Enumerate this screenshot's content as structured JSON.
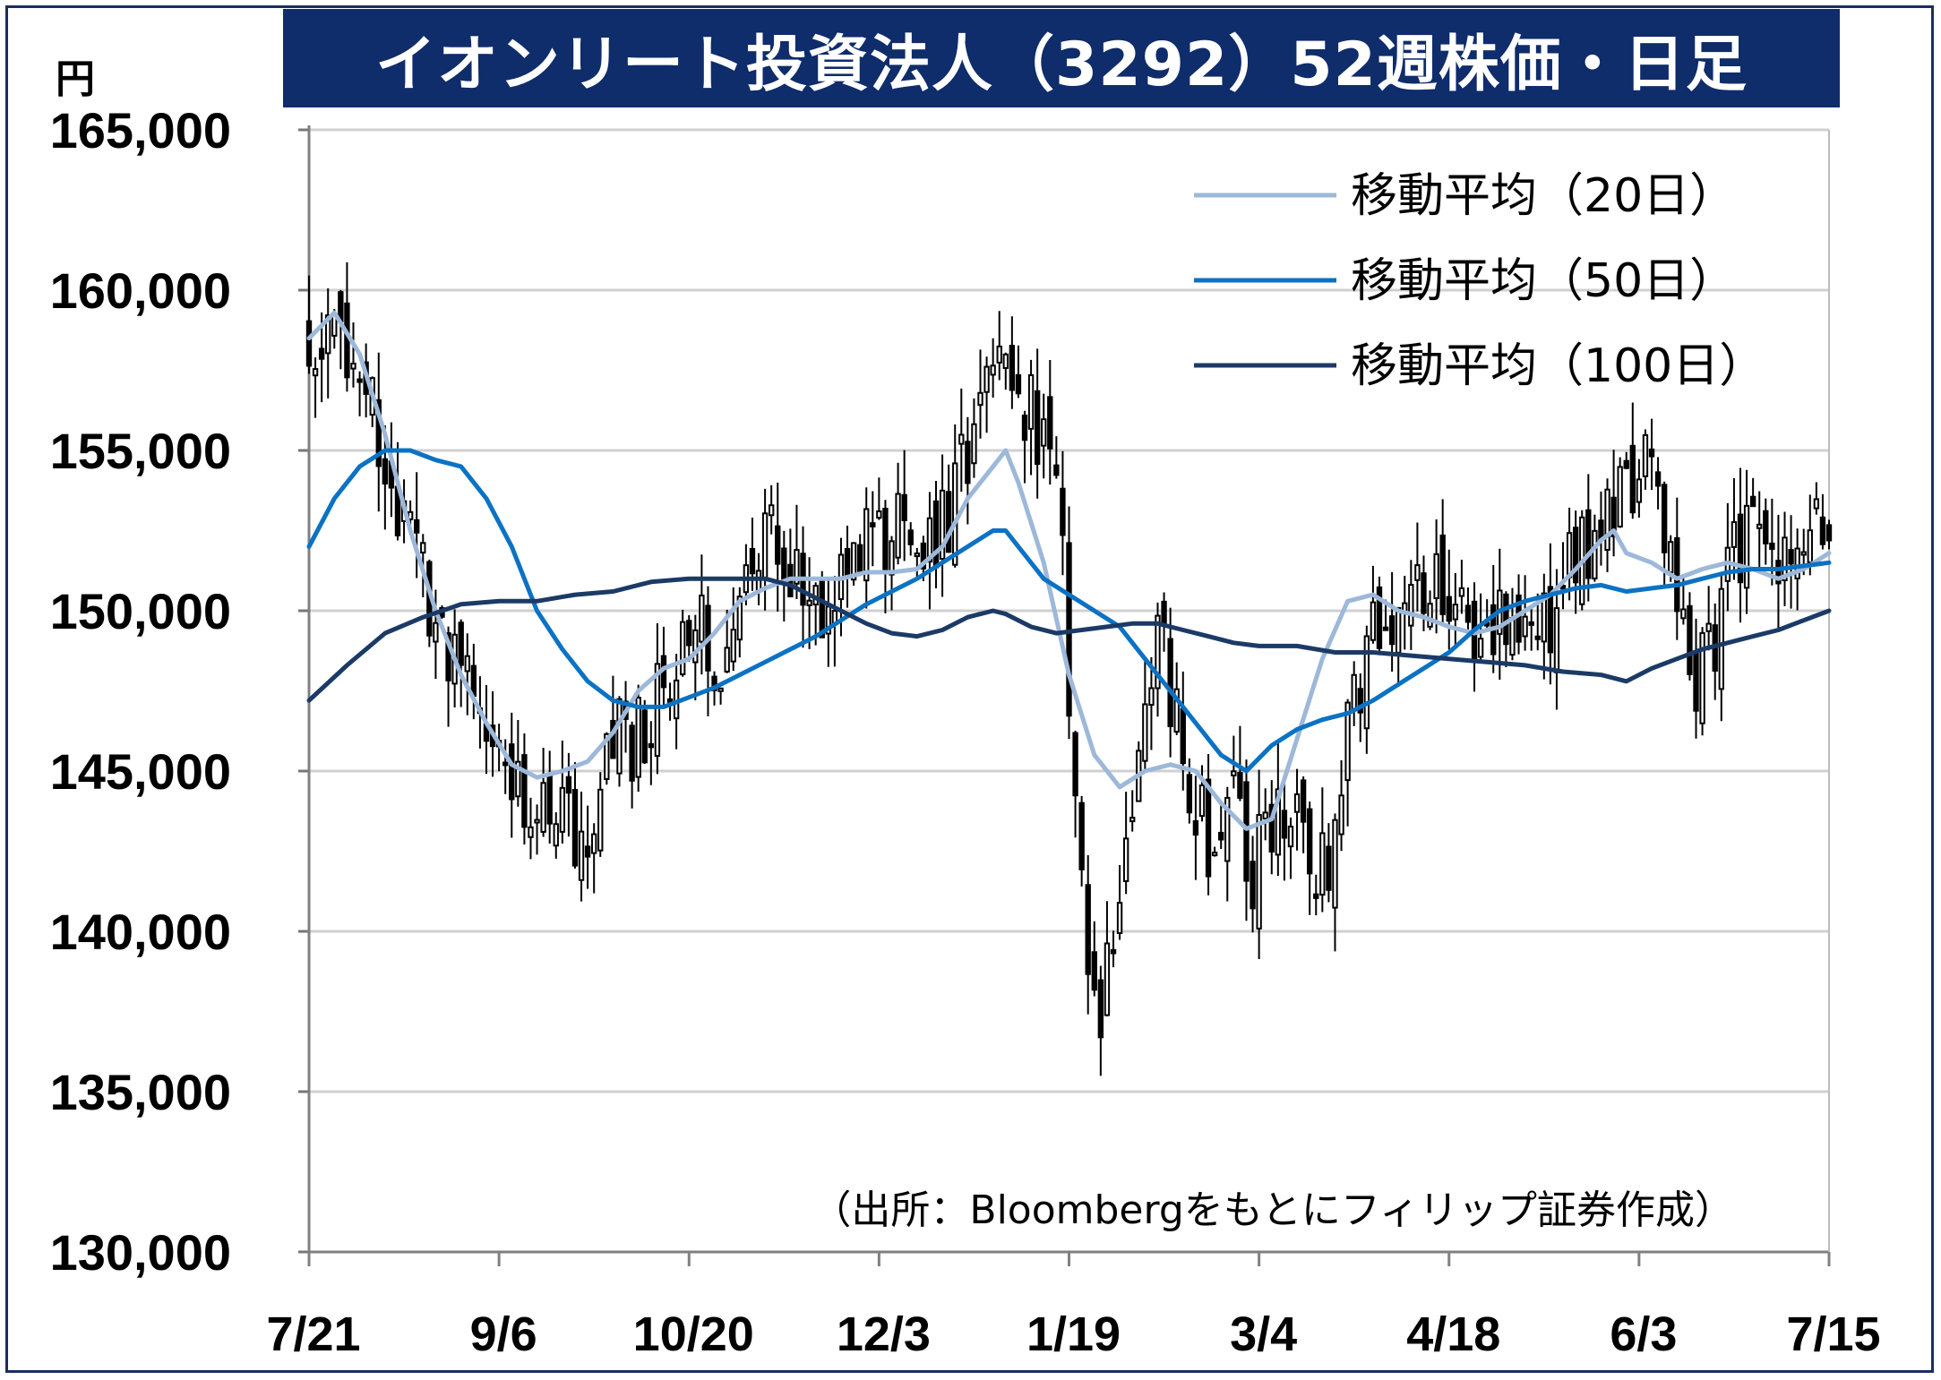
{
  "title": "イオンリート投資法人（3292）52週株価・日足",
  "unit": "円",
  "source": "（出所：Bloombergをもとにフィリップ証券作成）",
  "colors": {
    "title_bg": "#0f2c6b",
    "ma20": "#9db8d9",
    "ma50": "#0b72c4",
    "ma100": "#1b3a66",
    "candle": "#000000",
    "grid": "#d0d0d0"
  },
  "chart_data": {
    "type": "candlestick",
    "ylim": [
      130000,
      165000
    ],
    "y_ticks": [
      "130,000",
      "135,000",
      "140,000",
      "145,000",
      "150,000",
      "155,000",
      "160,000",
      "165,000"
    ],
    "y_tick_values": [
      130000,
      135000,
      140000,
      145000,
      150000,
      155000,
      160000,
      165000
    ],
    "x_labels": [
      "7/21",
      "9/6",
      "10/20",
      "12/3",
      "1/19",
      "3/4",
      "4/18",
      "6/3",
      "7/15"
    ],
    "x_label_days": [
      0,
      30,
      60,
      90,
      120,
      150,
      180,
      210,
      240
    ],
    "n_days": 241,
    "close_anchors": [
      [
        0,
        158500
      ],
      [
        4,
        159000
      ],
      [
        8,
        157500
      ],
      [
        12,
        155000
      ],
      [
        16,
        152000
      ],
      [
        20,
        150000
      ],
      [
        24,
        148000
      ],
      [
        28,
        146500
      ],
      [
        32,
        145000
      ],
      [
        36,
        144000
      ],
      [
        40,
        143500
      ],
      [
        44,
        143000
      ],
      [
        48,
        146000
      ],
      [
        52,
        146000
      ],
      [
        56,
        148000
      ],
      [
        60,
        150000
      ],
      [
        64,
        148500
      ],
      [
        68,
        150000
      ],
      [
        72,
        152500
      ],
      [
        76,
        151000
      ],
      [
        80,
        150000
      ],
      [
        84,
        151500
      ],
      [
        88,
        152000
      ],
      [
        92,
        152500
      ],
      [
        96,
        152000
      ],
      [
        100,
        152500
      ],
      [
        104,
        155000
      ],
      [
        108,
        158000
      ],
      [
        112,
        157000
      ],
      [
        116,
        155500
      ],
      [
        119,
        152000
      ],
      [
        121,
        144000
      ],
      [
        123,
        139000
      ],
      [
        125,
        137500
      ],
      [
        128,
        141000
      ],
      [
        131,
        146000
      ],
      [
        134,
        149000
      ],
      [
        137,
        147000
      ],
      [
        140,
        144000
      ],
      [
        143,
        142000
      ],
      [
        146,
        144000
      ],
      [
        149,
        142000
      ],
      [
        152,
        143500
      ],
      [
        155,
        144500
      ],
      [
        158,
        142500
      ],
      [
        161,
        142000
      ],
      [
        164,
        146000
      ],
      [
        167,
        149000
      ],
      [
        170,
        150500
      ],
      [
        173,
        149500
      ],
      [
        176,
        151000
      ],
      [
        180,
        150500
      ],
      [
        184,
        149500
      ],
      [
        188,
        149500
      ],
      [
        192,
        149000
      ],
      [
        196,
        150000
      ],
      [
        200,
        151500
      ],
      [
        204,
        152500
      ],
      [
        208,
        154000
      ],
      [
        212,
        154500
      ],
      [
        215,
        151500
      ],
      [
        218,
        148000
      ],
      [
        221,
        148500
      ],
      [
        224,
        151000
      ],
      [
        228,
        153000
      ],
      [
        232,
        152000
      ],
      [
        236,
        151500
      ],
      [
        240,
        153000
      ]
    ],
    "series": [
      {
        "name": "移動平均（20日）",
        "window": 20,
        "points": [
          [
            0,
            158500
          ],
          [
            4,
            159300
          ],
          [
            8,
            158000
          ],
          [
            12,
            155500
          ],
          [
            16,
            152500
          ],
          [
            20,
            150000
          ],
          [
            24,
            148000
          ],
          [
            28,
            146500
          ],
          [
            32,
            145200
          ],
          [
            36,
            144800
          ],
          [
            40,
            145000
          ],
          [
            44,
            145300
          ],
          [
            48,
            146200
          ],
          [
            52,
            147500
          ],
          [
            56,
            148200
          ],
          [
            60,
            148500
          ],
          [
            64,
            149300
          ],
          [
            68,
            150300
          ],
          [
            72,
            150700
          ],
          [
            76,
            151000
          ],
          [
            80,
            151000
          ],
          [
            84,
            151000
          ],
          [
            88,
            151200
          ],
          [
            92,
            151200
          ],
          [
            96,
            151300
          ],
          [
            100,
            152000
          ],
          [
            104,
            153500
          ],
          [
            108,
            154500
          ],
          [
            110,
            155000
          ],
          [
            112,
            154000
          ],
          [
            116,
            151500
          ],
          [
            120,
            148000
          ],
          [
            124,
            145500
          ],
          [
            128,
            144500
          ],
          [
            132,
            145000
          ],
          [
            136,
            145200
          ],
          [
            140,
            145000
          ],
          [
            144,
            144000
          ],
          [
            148,
            143200
          ],
          [
            152,
            143500
          ],
          [
            156,
            146000
          ],
          [
            160,
            148500
          ],
          [
            164,
            150300
          ],
          [
            168,
            150500
          ],
          [
            172,
            150000
          ],
          [
            176,
            149800
          ],
          [
            180,
            149500
          ],
          [
            184,
            149300
          ],
          [
            188,
            149500
          ],
          [
            192,
            150000
          ],
          [
            196,
            150500
          ],
          [
            200,
            151300
          ],
          [
            204,
            152200
          ],
          [
            206,
            152500
          ],
          [
            208,
            151800
          ],
          [
            212,
            151500
          ],
          [
            216,
            151000
          ],
          [
            220,
            151300
          ],
          [
            224,
            151500
          ],
          [
            228,
            151300
          ],
          [
            232,
            151000
          ],
          [
            236,
            151300
          ],
          [
            240,
            151800
          ]
        ]
      },
      {
        "name": "移動平均（50日）",
        "window": 50,
        "points": [
          [
            0,
            152000
          ],
          [
            4,
            153500
          ],
          [
            8,
            154500
          ],
          [
            12,
            155000
          ],
          [
            16,
            155000
          ],
          [
            20,
            154700
          ],
          [
            24,
            154500
          ],
          [
            28,
            153500
          ],
          [
            32,
            152000
          ],
          [
            36,
            150000
          ],
          [
            40,
            148800
          ],
          [
            44,
            147800
          ],
          [
            48,
            147200
          ],
          [
            52,
            147000
          ],
          [
            56,
            147000
          ],
          [
            60,
            147300
          ],
          [
            64,
            147600
          ],
          [
            68,
            148000
          ],
          [
            72,
            148400
          ],
          [
            76,
            148800
          ],
          [
            80,
            149200
          ],
          [
            84,
            149700
          ],
          [
            88,
            150200
          ],
          [
            92,
            150600
          ],
          [
            96,
            151000
          ],
          [
            100,
            151500
          ],
          [
            104,
            152000
          ],
          [
            108,
            152500
          ],
          [
            110,
            152500
          ],
          [
            112,
            152000
          ],
          [
            116,
            151000
          ],
          [
            120,
            150500
          ],
          [
            124,
            150000
          ],
          [
            128,
            149500
          ],
          [
            132,
            148500
          ],
          [
            136,
            147500
          ],
          [
            140,
            146500
          ],
          [
            144,
            145500
          ],
          [
            148,
            145000
          ],
          [
            152,
            145800
          ],
          [
            156,
            146300
          ],
          [
            160,
            146600
          ],
          [
            164,
            146800
          ],
          [
            168,
            147200
          ],
          [
            172,
            147700
          ],
          [
            176,
            148200
          ],
          [
            180,
            148700
          ],
          [
            184,
            149400
          ],
          [
            188,
            150000
          ],
          [
            192,
            150300
          ],
          [
            196,
            150500
          ],
          [
            200,
            150700
          ],
          [
            204,
            150800
          ],
          [
            208,
            150600
          ],
          [
            212,
            150700
          ],
          [
            216,
            150800
          ],
          [
            220,
            151000
          ],
          [
            224,
            151200
          ],
          [
            228,
            151300
          ],
          [
            232,
            151300
          ],
          [
            236,
            151400
          ],
          [
            240,
            151500
          ]
        ]
      },
      {
        "name": "移動平均（100日）",
        "window": 100,
        "points": [
          [
            0,
            147200
          ],
          [
            6,
            148300
          ],
          [
            12,
            149300
          ],
          [
            18,
            149800
          ],
          [
            24,
            150200
          ],
          [
            30,
            150300
          ],
          [
            36,
            150300
          ],
          [
            42,
            150500
          ],
          [
            48,
            150600
          ],
          [
            54,
            150900
          ],
          [
            60,
            151000
          ],
          [
            66,
            151000
          ],
          [
            72,
            151000
          ],
          [
            76,
            150800
          ],
          [
            80,
            150400
          ],
          [
            84,
            150000
          ],
          [
            88,
            149600
          ],
          [
            92,
            149300
          ],
          [
            96,
            149200
          ],
          [
            100,
            149400
          ],
          [
            104,
            149800
          ],
          [
            108,
            150000
          ],
          [
            110,
            149900
          ],
          [
            114,
            149500
          ],
          [
            118,
            149300
          ],
          [
            122,
            149400
          ],
          [
            126,
            149500
          ],
          [
            130,
            149600
          ],
          [
            134,
            149600
          ],
          [
            138,
            149400
          ],
          [
            142,
            149200
          ],
          [
            146,
            149000
          ],
          [
            150,
            148900
          ],
          [
            156,
            148900
          ],
          [
            162,
            148700
          ],
          [
            168,
            148700
          ],
          [
            174,
            148600
          ],
          [
            180,
            148500
          ],
          [
            186,
            148400
          ],
          [
            192,
            148300
          ],
          [
            198,
            148100
          ],
          [
            204,
            148000
          ],
          [
            208,
            147800
          ],
          [
            212,
            148200
          ],
          [
            216,
            148500
          ],
          [
            220,
            148800
          ],
          [
            224,
            149000
          ],
          [
            228,
            149200
          ],
          [
            232,
            149400
          ],
          [
            236,
            149700
          ],
          [
            240,
            150000
          ]
        ]
      }
    ],
    "legend_position": "top-right",
    "grid": true
  }
}
